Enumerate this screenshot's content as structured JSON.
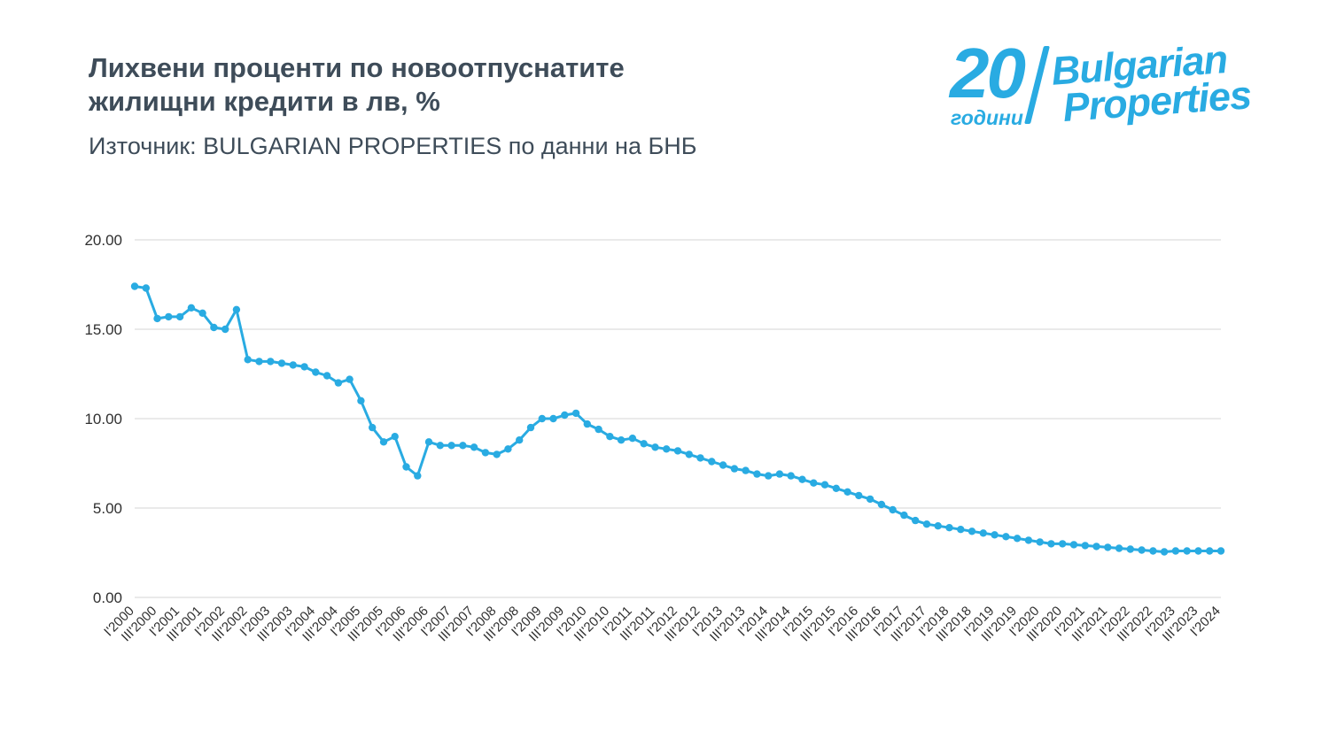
{
  "page": {
    "title_line1": "Лихвени проценти по новоотпуснатите",
    "title_line2": "жилищни кредити в лв, %",
    "source": "Източник: BULGARIAN PROPERTIES по данни на БНБ"
  },
  "logo": {
    "number": "20",
    "years_label": "години",
    "brand_line1": "Bulgarian",
    "brand_line2": "Properties",
    "color": "#29ABE2"
  },
  "chart_data": {
    "type": "line",
    "title": "Лихвени проценти по новоотпуснатите жилищни кредити в лв, %",
    "line_color": "#29ABE2",
    "marker": "circle",
    "grid": true,
    "legend": "none",
    "ylim": [
      0,
      20
    ],
    "yticks": [
      20,
      15,
      10,
      5,
      0
    ],
    "ytick_labels": [
      "20.00",
      "15.00",
      "10.00",
      "5.00",
      "0.00"
    ],
    "xtick_every": 2,
    "x": [
      "I'2000",
      "II'2000",
      "III'2000",
      "IV'2000",
      "I'2001",
      "II'2001",
      "III'2001",
      "IV'2001",
      "I'2002",
      "II'2002",
      "III'2002",
      "IV'2002",
      "I'2003",
      "II'2003",
      "III'2003",
      "IV'2003",
      "I'2004",
      "II'2004",
      "III'2004",
      "IV'2004",
      "I'2005",
      "II'2005",
      "III'2005",
      "IV'2005",
      "I'2006",
      "II'2006",
      "III'2006",
      "IV'2006",
      "I'2007",
      "II'2007",
      "III'2007",
      "IV'2007",
      "I'2008",
      "II'2008",
      "III'2008",
      "IV'2008",
      "I'2009",
      "II'2009",
      "III'2009",
      "IV'2009",
      "I'2010",
      "II'2010",
      "III'2010",
      "IV'2010",
      "I'2011",
      "II'2011",
      "III'2011",
      "IV'2011",
      "I'2012",
      "II'2012",
      "III'2012",
      "IV'2012",
      "I'2013",
      "II'2013",
      "III'2013",
      "IV'2013",
      "I'2014",
      "II'2014",
      "III'2014",
      "IV'2014",
      "I'2015",
      "II'2015",
      "III'2015",
      "IV'2015",
      "I'2016",
      "II'2016",
      "III'2016",
      "IV'2016",
      "I'2017",
      "II'2017",
      "III'2017",
      "IV'2017",
      "I'2018",
      "II'2018",
      "III'2018",
      "IV'2018",
      "I'2019",
      "II'2019",
      "III'2019",
      "IV'2019",
      "I'2020",
      "II'2020",
      "III'2020",
      "IV'2020",
      "I'2021",
      "II'2021",
      "III'2021",
      "IV'2021",
      "I'2022",
      "II'2022",
      "III'2022",
      "IV'2022",
      "I'2023",
      "II'2023",
      "III'2023",
      "IV'2023",
      "I'2024"
    ],
    "values": [
      17.4,
      17.3,
      15.6,
      15.7,
      15.7,
      16.2,
      15.9,
      15.1,
      15.0,
      16.1,
      13.3,
      13.2,
      13.2,
      13.1,
      13.0,
      12.9,
      12.6,
      12.4,
      12.0,
      12.2,
      11.0,
      9.5,
      8.7,
      9.0,
      7.3,
      6.8,
      8.7,
      8.5,
      8.5,
      8.5,
      8.4,
      8.1,
      8.0,
      8.3,
      8.8,
      9.5,
      10.0,
      10.0,
      10.2,
      10.3,
      9.7,
      9.4,
      9.0,
      8.8,
      8.9,
      8.6,
      8.4,
      8.3,
      8.2,
      8.0,
      7.8,
      7.6,
      7.4,
      7.2,
      7.1,
      6.9,
      6.8,
      6.9,
      6.8,
      6.6,
      6.4,
      6.3,
      6.1,
      5.9,
      5.7,
      5.5,
      5.2,
      4.9,
      4.6,
      4.3,
      4.1,
      4.0,
      3.9,
      3.8,
      3.7,
      3.6,
      3.5,
      3.4,
      3.3,
      3.2,
      3.1,
      3.0,
      3.0,
      2.95,
      2.9,
      2.85,
      2.8,
      2.75,
      2.7,
      2.65,
      2.6,
      2.55,
      2.6,
      2.6,
      2.6,
      2.6,
      2.6
    ]
  }
}
